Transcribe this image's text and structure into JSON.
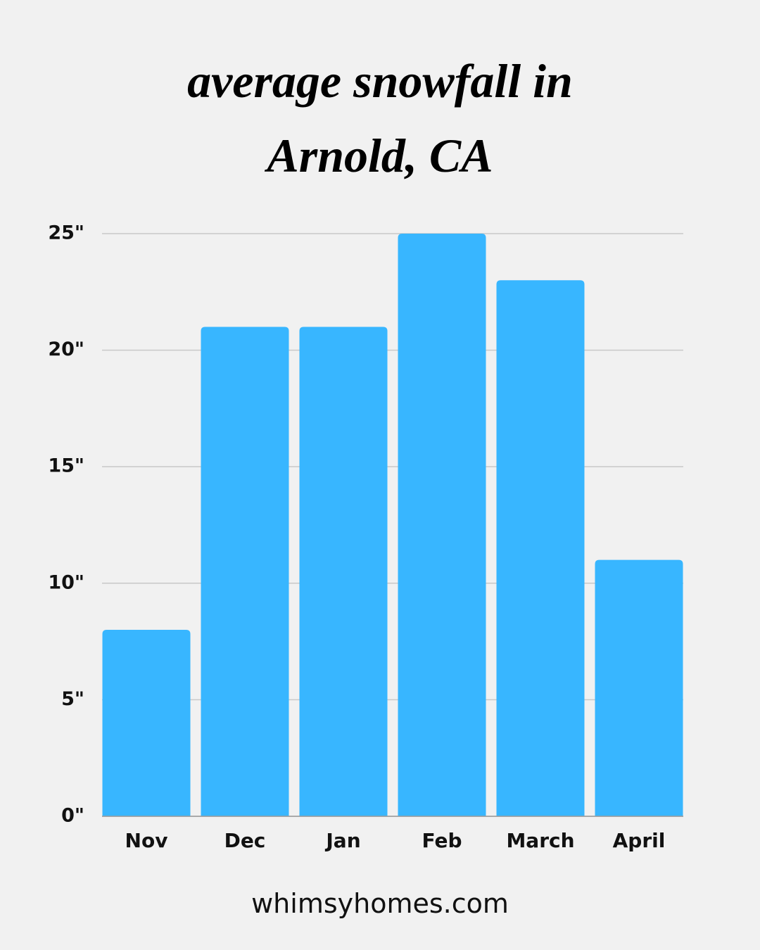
{
  "chart_data": {
    "type": "bar",
    "title": "average snowfall in Arnold, CA",
    "categories": [
      "Nov",
      "Dec",
      "Jan",
      "Feb",
      "March",
      "April"
    ],
    "values": [
      8,
      21,
      21,
      25,
      23,
      11
    ],
    "color": "#38b6ff",
    "ylim": [
      0,
      25
    ],
    "yticks": [
      {
        "value": 0,
        "label": "0\""
      },
      {
        "value": 5,
        "label": "5\""
      },
      {
        "value": 10,
        "label": "10\""
      },
      {
        "value": 15,
        "label": "15\""
      },
      {
        "value": 20,
        "label": "20\""
      },
      {
        "value": 25,
        "label": "25\""
      }
    ],
    "grid": true,
    "source": "whimsyhomes.com"
  }
}
